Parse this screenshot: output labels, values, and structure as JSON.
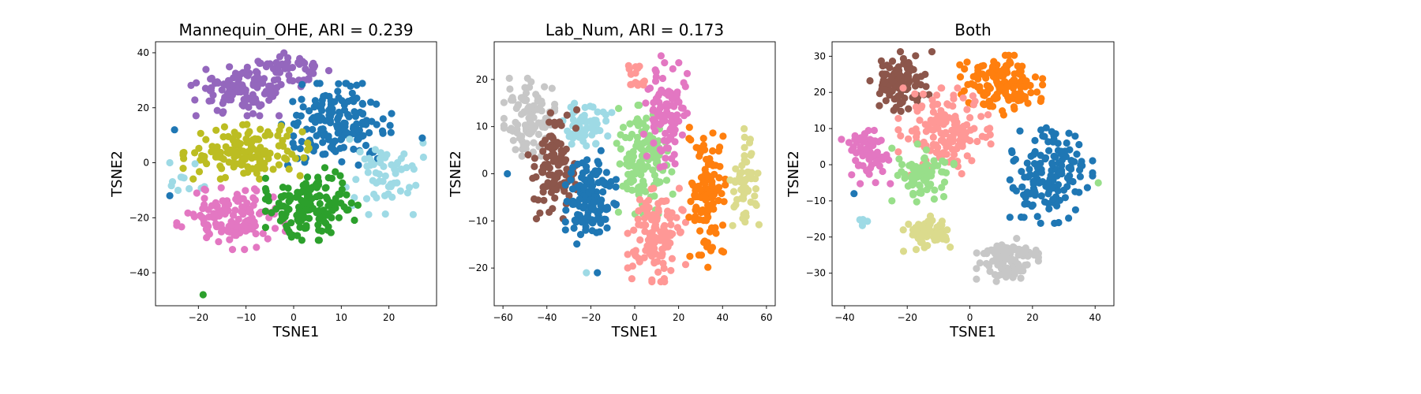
{
  "chart_data": [
    {
      "type": "scatter",
      "title": "Mannequin_OHE, ARI = 0.239",
      "xlabel": "TSNE1",
      "ylabel": "TSNE2",
      "xlim": [
        -29,
        30
      ],
      "ylim": [
        -52,
        44
      ],
      "xticks": [
        -20,
        -10,
        0,
        10,
        20
      ],
      "yticks": [
        -40,
        -20,
        0,
        20,
        40
      ],
      "grid": false,
      "clusters": [
        {
          "color": "#9467bd",
          "center": [
            -10,
            27
          ],
          "spread": [
            7,
            6
          ],
          "count": 120
        },
        {
          "color": "#9467bd",
          "center": [
            0,
            35
          ],
          "spread": [
            5,
            3
          ],
          "count": 35
        },
        {
          "color": "#1f77b4",
          "center": [
            9,
            14
          ],
          "spread": [
            7,
            9
          ],
          "count": 170
        },
        {
          "color": "#bcbd22",
          "center": [
            -10,
            4
          ],
          "spread": [
            8,
            6
          ],
          "count": 140
        },
        {
          "color": "#9edae5",
          "center": [
            19,
            -4
          ],
          "spread": [
            5,
            9
          ],
          "count": 60
        },
        {
          "color": "#9edae5",
          "center": [
            -23,
            -6
          ],
          "spread": [
            3,
            5
          ],
          "count": 10
        },
        {
          "color": "#e377c2",
          "center": [
            -13,
            -20
          ],
          "spread": [
            7,
            7
          ],
          "count": 130
        },
        {
          "color": "#2ca02c",
          "center": [
            4,
            -15
          ],
          "spread": [
            6,
            8
          ],
          "count": 150
        }
      ],
      "outliers": [
        {
          "x": -19,
          "y": -48,
          "color": "#2ca02c"
        },
        {
          "x": -26,
          "y": 0,
          "color": "#9edae5"
        },
        {
          "x": -26,
          "y": -12,
          "color": "#1f77b4"
        },
        {
          "x": -25,
          "y": 12,
          "color": "#1f77b4"
        },
        {
          "x": 27,
          "y": 9,
          "color": "#1f77b4"
        }
      ]
    },
    {
      "type": "scatter",
      "title": "Lab_Num, ARI = 0.173",
      "xlabel": "TSNE1",
      "ylabel": "TSNE2",
      "xlim": [
        -64,
        64
      ],
      "ylim": [
        -28,
        28
      ],
      "xticks": [
        -60,
        -40,
        -20,
        0,
        20,
        40,
        60
      ],
      "yticks": [
        -20,
        -10,
        0,
        10,
        20
      ],
      "grid": false,
      "clusters": [
        {
          "color": "#c7c7c7",
          "center": [
            -48,
            12
          ],
          "spread": [
            7,
            5
          ],
          "count": 110
        },
        {
          "color": "#9edae5",
          "center": [
            -22,
            10
          ],
          "spread": [
            7,
            3
          ],
          "count": 60
        },
        {
          "color": "#8c564b",
          "center": [
            -37,
            2
          ],
          "spread": [
            7,
            7
          ],
          "count": 110
        },
        {
          "color": "#1f77b4",
          "center": [
            -20,
            -5
          ],
          "spread": [
            7,
            6
          ],
          "count": 120
        },
        {
          "color": "#98df8a",
          "center": [
            5,
            3
          ],
          "spread": [
            8,
            7
          ],
          "count": 130
        },
        {
          "color": "#e377c2",
          "center": [
            14,
            12
          ],
          "spread": [
            6,
            7
          ],
          "count": 100
        },
        {
          "color": "#ff9896",
          "center": [
            10,
            -13
          ],
          "spread": [
            8,
            6
          ],
          "count": 130
        },
        {
          "color": "#ff7f0e",
          "center": [
            33,
            -5
          ],
          "spread": [
            5,
            9
          ],
          "count": 110
        },
        {
          "color": "#dbdb8d",
          "center": [
            50,
            -2
          ],
          "spread": [
            4,
            7
          ],
          "count": 60
        },
        {
          "color": "#ff9896",
          "center": [
            0,
            21
          ],
          "spread": [
            3,
            2
          ],
          "count": 15
        }
      ],
      "outliers": [
        {
          "x": -58,
          "y": 0,
          "color": "#1f77b4"
        },
        {
          "x": 12,
          "y": 25,
          "color": "#e377c2"
        },
        {
          "x": -17,
          "y": -21,
          "color": "#1f77b4"
        },
        {
          "x": -22,
          "y": -21,
          "color": "#9edae5"
        }
      ]
    },
    {
      "type": "scatter",
      "title": "Both",
      "xlabel": "TSNE1",
      "ylabel": "TSNE2",
      "xlim": [
        -44,
        46
      ],
      "ylim": [
        -39,
        34
      ],
      "xticks": [
        -40,
        -20,
        0,
        20,
        40
      ],
      "yticks": [
        -30,
        -20,
        -10,
        0,
        10,
        20,
        30
      ],
      "grid": false,
      "clusters": [
        {
          "color": "#8c564b",
          "center": [
            -22,
            23
          ],
          "spread": [
            6,
            5
          ],
          "count": 100
        },
        {
          "color": "#ff7f0e",
          "center": [
            10,
            22
          ],
          "spread": [
            8,
            5
          ],
          "count": 140
        },
        {
          "color": "#e377c2",
          "center": [
            -32,
            3
          ],
          "spread": [
            4,
            5
          ],
          "count": 70
        },
        {
          "color": "#ff9896",
          "center": [
            -8,
            8
          ],
          "spread": [
            9,
            8
          ],
          "count": 150
        },
        {
          "color": "#98df8a",
          "center": [
            -15,
            -2
          ],
          "spread": [
            6,
            5
          ],
          "count": 80
        },
        {
          "color": "#1f77b4",
          "center": [
            26,
            -3
          ],
          "spread": [
            8,
            8
          ],
          "count": 150
        },
        {
          "color": "#dbdb8d",
          "center": [
            -13,
            -19
          ],
          "spread": [
            5,
            3
          ],
          "count": 70
        },
        {
          "color": "#c7c7c7",
          "center": [
            12,
            -27
          ],
          "spread": [
            6,
            4
          ],
          "count": 110
        },
        {
          "color": "#9edae5",
          "center": [
            -34,
            -16
          ],
          "spread": [
            2,
            1
          ],
          "count": 6
        }
      ],
      "outliers": [
        {
          "x": -41,
          "y": 7,
          "color": "#e377c2"
        },
        {
          "x": 41,
          "y": -5,
          "color": "#98df8a"
        },
        {
          "x": -37,
          "y": -8,
          "color": "#1f77b4"
        }
      ]
    }
  ]
}
